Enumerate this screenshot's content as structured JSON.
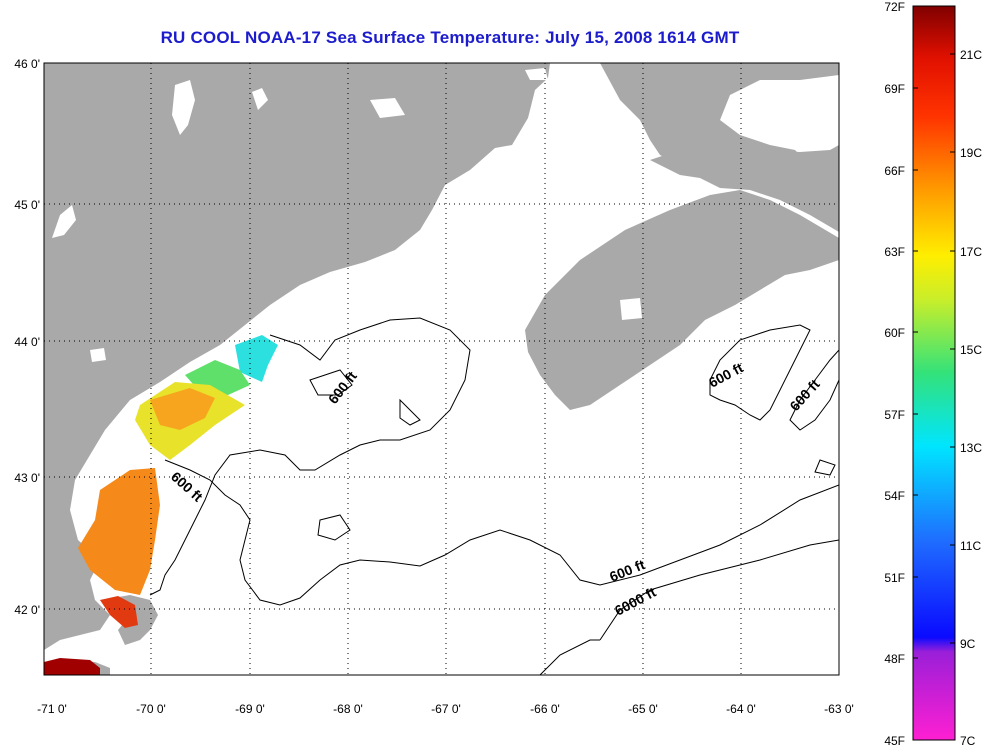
{
  "title": "RU COOL  NOAA-17  Sea Surface Temperature:  July 15, 2008 1614 GMT",
  "lat_ticks": [
    "46 0'",
    "45 0'",
    "44 0'",
    "43 0'",
    "42 0'"
  ],
  "lon_ticks": [
    "-71 0'",
    "-70 0'",
    "-69 0'",
    "-68 0'",
    "-67 0'",
    "-66 0'",
    "-65 0'",
    "-64 0'",
    "-63 0'"
  ],
  "contour_labels": [
    "600 ft",
    "600 ft",
    "600 ft",
    "600 ft",
    "600 ft",
    "6000 ft"
  ],
  "colorbar": {
    "fahrenheit": [
      "72F",
      "69F",
      "66F",
      "63F",
      "60F",
      "57F",
      "54F",
      "51F",
      "48F",
      "45F"
    ],
    "celsius": [
      "21C",
      "19C",
      "17C",
      "15C",
      "13C",
      "11C",
      "9C",
      "7C"
    ]
  },
  "colors": {
    "land": "#a9a9a9",
    "title": "#1c1ccc",
    "ocean": "#ffffff"
  }
}
